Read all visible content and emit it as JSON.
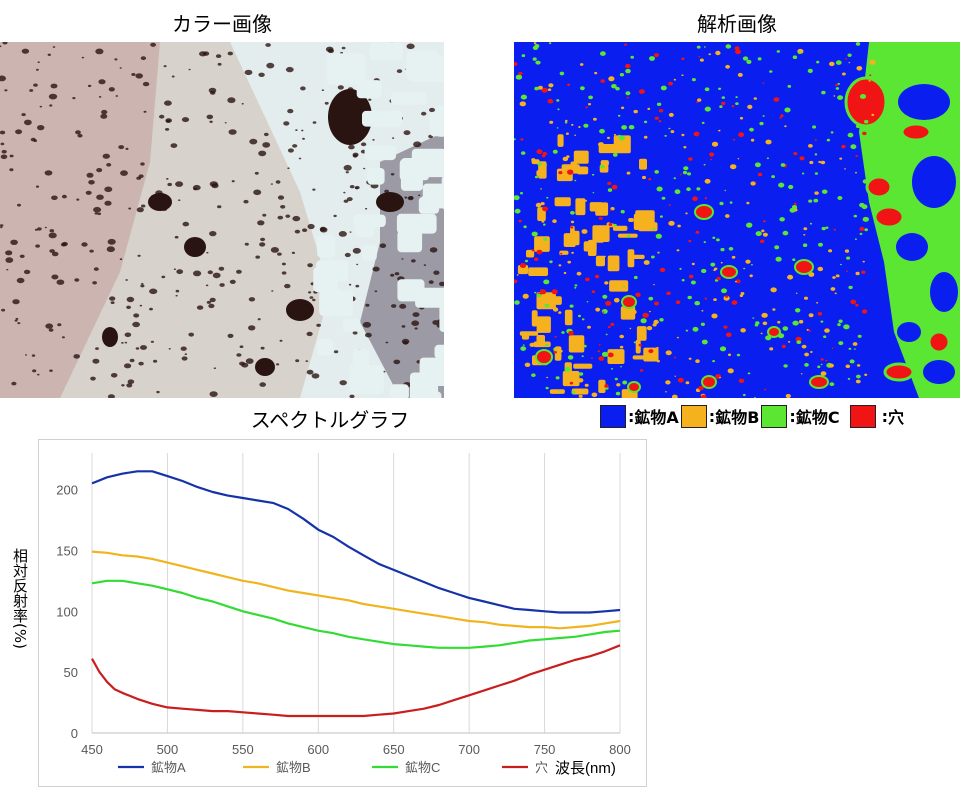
{
  "titles": {
    "color_image": "カラー画像",
    "analysis_image": "解析画像",
    "spectrum_graph": "スペクトルグラフ"
  },
  "analysis_legend": [
    {
      "label": "鉱物A",
      "color": "#0a1ef0"
    },
    {
      "label": "鉱物B",
      "color": "#f5b21e"
    },
    {
      "label": "鉱物C",
      "color": "#5ae632"
    },
    {
      "label": "穴",
      "color": "#f01414"
    }
  ],
  "analysis_legend_separator": ":",
  "colors": {
    "color_image_base": "#d7d2cc",
    "color_image_bright": "#e6f2f2",
    "color_image_pink": "#c8aaa8",
    "color_image_dark": "#2a1412",
    "color_image_gray": "#8a8592"
  },
  "chart_data": {
    "type": "line",
    "xlabel": "波長(nm)",
    "ylabel": "相対反射率(%)",
    "xlim": [
      450,
      800
    ],
    "ylim": [
      0,
      230
    ],
    "xticks": [
      450,
      500,
      550,
      600,
      650,
      700,
      750,
      800
    ],
    "yticks": [
      0,
      50,
      100,
      150,
      200
    ],
    "grid": "vertical",
    "legend_position": "bottom",
    "series": [
      {
        "name": "鉱物A",
        "color": "#1632a8",
        "points": [
          [
            450,
            205
          ],
          [
            460,
            210
          ],
          [
            470,
            213
          ],
          [
            480,
            215
          ],
          [
            490,
            215
          ],
          [
            500,
            211
          ],
          [
            510,
            207
          ],
          [
            520,
            202
          ],
          [
            530,
            198
          ],
          [
            540,
            195
          ],
          [
            550,
            193
          ],
          [
            560,
            191
          ],
          [
            570,
            189
          ],
          [
            580,
            184
          ],
          [
            590,
            176
          ],
          [
            600,
            167
          ],
          [
            610,
            161
          ],
          [
            620,
            153
          ],
          [
            630,
            146
          ],
          [
            640,
            139
          ],
          [
            650,
            134
          ],
          [
            660,
            129
          ],
          [
            670,
            124
          ],
          [
            680,
            119
          ],
          [
            690,
            115
          ],
          [
            700,
            111
          ],
          [
            710,
            108
          ],
          [
            720,
            105
          ],
          [
            730,
            102
          ],
          [
            740,
            101
          ],
          [
            750,
            100
          ],
          [
            760,
            99
          ],
          [
            770,
            99
          ],
          [
            780,
            99
          ],
          [
            790,
            100
          ],
          [
            800,
            101
          ]
        ]
      },
      {
        "name": "鉱物B",
        "color": "#f0b41e",
        "points": [
          [
            450,
            149
          ],
          [
            460,
            148
          ],
          [
            470,
            146
          ],
          [
            480,
            145
          ],
          [
            490,
            143
          ],
          [
            500,
            140
          ],
          [
            510,
            137
          ],
          [
            520,
            134
          ],
          [
            530,
            131
          ],
          [
            540,
            128
          ],
          [
            550,
            125
          ],
          [
            560,
            123
          ],
          [
            570,
            120
          ],
          [
            580,
            117
          ],
          [
            590,
            115
          ],
          [
            600,
            113
          ],
          [
            610,
            111
          ],
          [
            620,
            109
          ],
          [
            630,
            106
          ],
          [
            640,
            104
          ],
          [
            650,
            102
          ],
          [
            660,
            100
          ],
          [
            670,
            98
          ],
          [
            680,
            96
          ],
          [
            690,
            94
          ],
          [
            700,
            92
          ],
          [
            710,
            91
          ],
          [
            720,
            89
          ],
          [
            730,
            88
          ],
          [
            740,
            87
          ],
          [
            750,
            87
          ],
          [
            760,
            86
          ],
          [
            770,
            87
          ],
          [
            780,
            88
          ],
          [
            790,
            90
          ],
          [
            800,
            92
          ]
        ]
      },
      {
        "name": "鉱物C",
        "color": "#32dc32",
        "points": [
          [
            450,
            123
          ],
          [
            460,
            125
          ],
          [
            470,
            125
          ],
          [
            480,
            123
          ],
          [
            490,
            121
          ],
          [
            500,
            118
          ],
          [
            510,
            115
          ],
          [
            520,
            111
          ],
          [
            530,
            108
          ],
          [
            540,
            104
          ],
          [
            550,
            100
          ],
          [
            560,
            97
          ],
          [
            570,
            94
          ],
          [
            580,
            90
          ],
          [
            590,
            87
          ],
          [
            600,
            84
          ],
          [
            610,
            82
          ],
          [
            620,
            79
          ],
          [
            630,
            77
          ],
          [
            640,
            75
          ],
          [
            650,
            73
          ],
          [
            660,
            72
          ],
          [
            670,
            71
          ],
          [
            680,
            70
          ],
          [
            690,
            70
          ],
          [
            700,
            70
          ],
          [
            710,
            71
          ],
          [
            720,
            72
          ],
          [
            730,
            74
          ],
          [
            740,
            76
          ],
          [
            750,
            77
          ],
          [
            760,
            78
          ],
          [
            770,
            79
          ],
          [
            780,
            81
          ],
          [
            790,
            83
          ],
          [
            800,
            84
          ]
        ]
      },
      {
        "name": "穴",
        "color": "#c81e1e",
        "points": [
          [
            450,
            61
          ],
          [
            455,
            50
          ],
          [
            460,
            42
          ],
          [
            465,
            36
          ],
          [
            470,
            33
          ],
          [
            480,
            28
          ],
          [
            490,
            24
          ],
          [
            500,
            21
          ],
          [
            510,
            20
          ],
          [
            520,
            19
          ],
          [
            530,
            18
          ],
          [
            540,
            18
          ],
          [
            550,
            17
          ],
          [
            560,
            16
          ],
          [
            570,
            15
          ],
          [
            580,
            14
          ],
          [
            590,
            14
          ],
          [
            600,
            14
          ],
          [
            610,
            14
          ],
          [
            620,
            14
          ],
          [
            630,
            14
          ],
          [
            640,
            15
          ],
          [
            650,
            16
          ],
          [
            660,
            18
          ],
          [
            670,
            20
          ],
          [
            680,
            23
          ],
          [
            690,
            27
          ],
          [
            700,
            31
          ],
          [
            710,
            35
          ],
          [
            720,
            39
          ],
          [
            730,
            43
          ],
          [
            740,
            48
          ],
          [
            750,
            52
          ],
          [
            760,
            56
          ],
          [
            770,
            60
          ],
          [
            780,
            63
          ],
          [
            790,
            67
          ],
          [
            800,
            72
          ]
        ]
      }
    ]
  }
}
